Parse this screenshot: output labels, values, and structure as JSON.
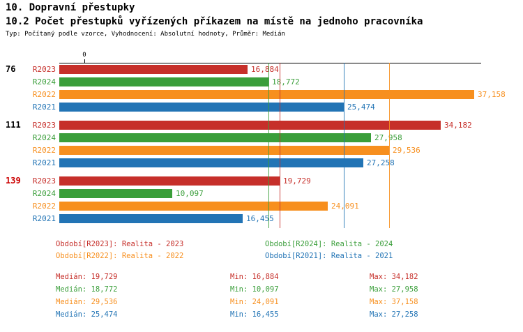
{
  "header": {
    "title": "10. Dopravní přestupky",
    "subtitle": "10.2 Počet přestupků vyřízených příkazem na místě na jednoho pracovníka",
    "meta": "Typ: Počítaný podle vzorce, Vyhodnocení: Absolutní hodnoty, Průměr: Medián"
  },
  "colors": {
    "R2023": "#c62f2a",
    "R2024": "#3a9e3a",
    "R2022": "#f78f1e",
    "R2021": "#2274b5",
    "axis": "#000000",
    "group_default": "#000000",
    "group_highlight": "#cc0000"
  },
  "chart_data": {
    "type": "bar",
    "orientation": "horizontal",
    "x_axis": {
      "zero_label": "0",
      "min": 0,
      "max": 37800,
      "grid": false
    },
    "series_order": [
      "R2023",
      "R2024",
      "R2022",
      "R2021"
    ],
    "groups": [
      {
        "label": "76",
        "label_color": "#000000",
        "bars": [
          {
            "series": "R2023",
            "value": 16884,
            "display": "16,884"
          },
          {
            "series": "R2024",
            "value": 18772,
            "display": "18,772"
          },
          {
            "series": "R2022",
            "value": 37158,
            "display": "37,158"
          },
          {
            "series": "R2021",
            "value": 25474,
            "display": "25,474"
          }
        ]
      },
      {
        "label": "111",
        "label_color": "#000000",
        "bars": [
          {
            "series": "R2023",
            "value": 34182,
            "display": "34,182"
          },
          {
            "series": "R2024",
            "value": 27958,
            "display": "27,958"
          },
          {
            "series": "R2022",
            "value": 29536,
            "display": "29,536"
          },
          {
            "series": "R2021",
            "value": 27258,
            "display": "27,258"
          }
        ]
      },
      {
        "label": "139",
        "label_color": "#cc0000",
        "bars": [
          {
            "series": "R2023",
            "value": 19729,
            "display": "19,729"
          },
          {
            "series": "R2024",
            "value": 10097,
            "display": "10,097"
          },
          {
            "series": "R2022",
            "value": 24091,
            "display": "24,091"
          },
          {
            "series": "R2021",
            "value": 16455,
            "display": "16,455"
          }
        ]
      }
    ],
    "median_lines": [
      {
        "series": "R2023",
        "value": 19729
      },
      {
        "series": "R2024",
        "value": 18772
      },
      {
        "series": "R2022",
        "value": 29536
      },
      {
        "series": "R2021",
        "value": 25474
      }
    ]
  },
  "legend": {
    "items": [
      {
        "text": "Období[R2023]: Realita - 2023",
        "series": "R2023"
      },
      {
        "text": "Období[R2024]: Realita - 2024",
        "series": "R2024"
      },
      {
        "text": "Období[R2022]: Realita - 2022",
        "series": "R2022"
      },
      {
        "text": "Období[R2021]: Realita - 2021",
        "series": "R2021"
      }
    ]
  },
  "stats": {
    "rows": [
      {
        "series": "R2023",
        "median": "Medián: 19,729",
        "min": "Min: 16,884",
        "max": "Max: 34,182"
      },
      {
        "series": "R2024",
        "median": "Medián: 18,772",
        "min": "Min: 10,097",
        "max": "Max: 27,958"
      },
      {
        "series": "R2022",
        "median": "Medián: 29,536",
        "min": "Min: 24,091",
        "max": "Max: 37,158"
      },
      {
        "series": "R2021",
        "median": "Medián: 25,474",
        "min": "Min: 16,455",
        "max": "Max: 27,258"
      }
    ]
  }
}
